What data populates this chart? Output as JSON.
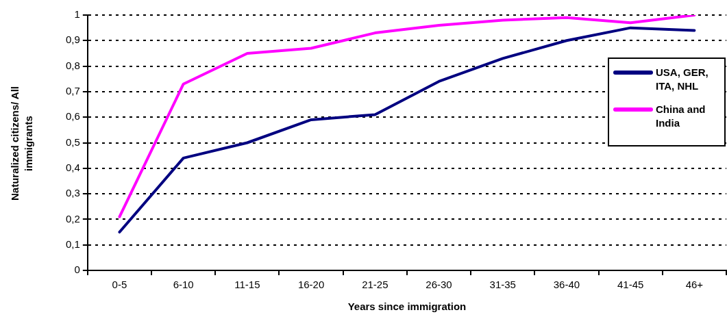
{
  "chart_data": {
    "type": "line",
    "xlabel": "Years since immigration",
    "ylabel": "Naturalized citizens/ All immigrants",
    "categories": [
      "0-5",
      "6-10",
      "11-15",
      "16-20",
      "21-25",
      "26-30",
      "31-35",
      "36-40",
      "41-45",
      "46+"
    ],
    "series": [
      {
        "name": "USA, GER, ITA, NHL",
        "color": "#000080",
        "values": [
          0.15,
          0.44,
          0.5,
          0.59,
          0.61,
          0.74,
          0.83,
          0.9,
          0.95,
          0.94
        ]
      },
      {
        "name": "China and India",
        "color": "#ff00ff",
        "values": [
          0.21,
          0.73,
          0.85,
          0.87,
          0.93,
          0.96,
          0.98,
          0.99,
          0.97,
          1.0
        ]
      }
    ],
    "ylim": [
      0,
      1
    ],
    "yticks": [
      {
        "value": 0,
        "label": "0"
      },
      {
        "value": 0.1,
        "label": "0,1"
      },
      {
        "value": 0.2,
        "label": "0,2"
      },
      {
        "value": 0.3,
        "label": "0,3"
      },
      {
        "value": 0.4,
        "label": "0,4"
      },
      {
        "value": 0.5,
        "label": "0,5"
      },
      {
        "value": 0.6,
        "label": "0,6"
      },
      {
        "value": 0.7,
        "label": "0,7"
      },
      {
        "value": 0.8,
        "label": "0,8"
      },
      {
        "value": 0.9,
        "label": "0,9"
      },
      {
        "value": 1,
        "label": "1"
      }
    ],
    "grid": "y",
    "legend": "right",
    "marker": "none",
    "line_style": "solid"
  }
}
